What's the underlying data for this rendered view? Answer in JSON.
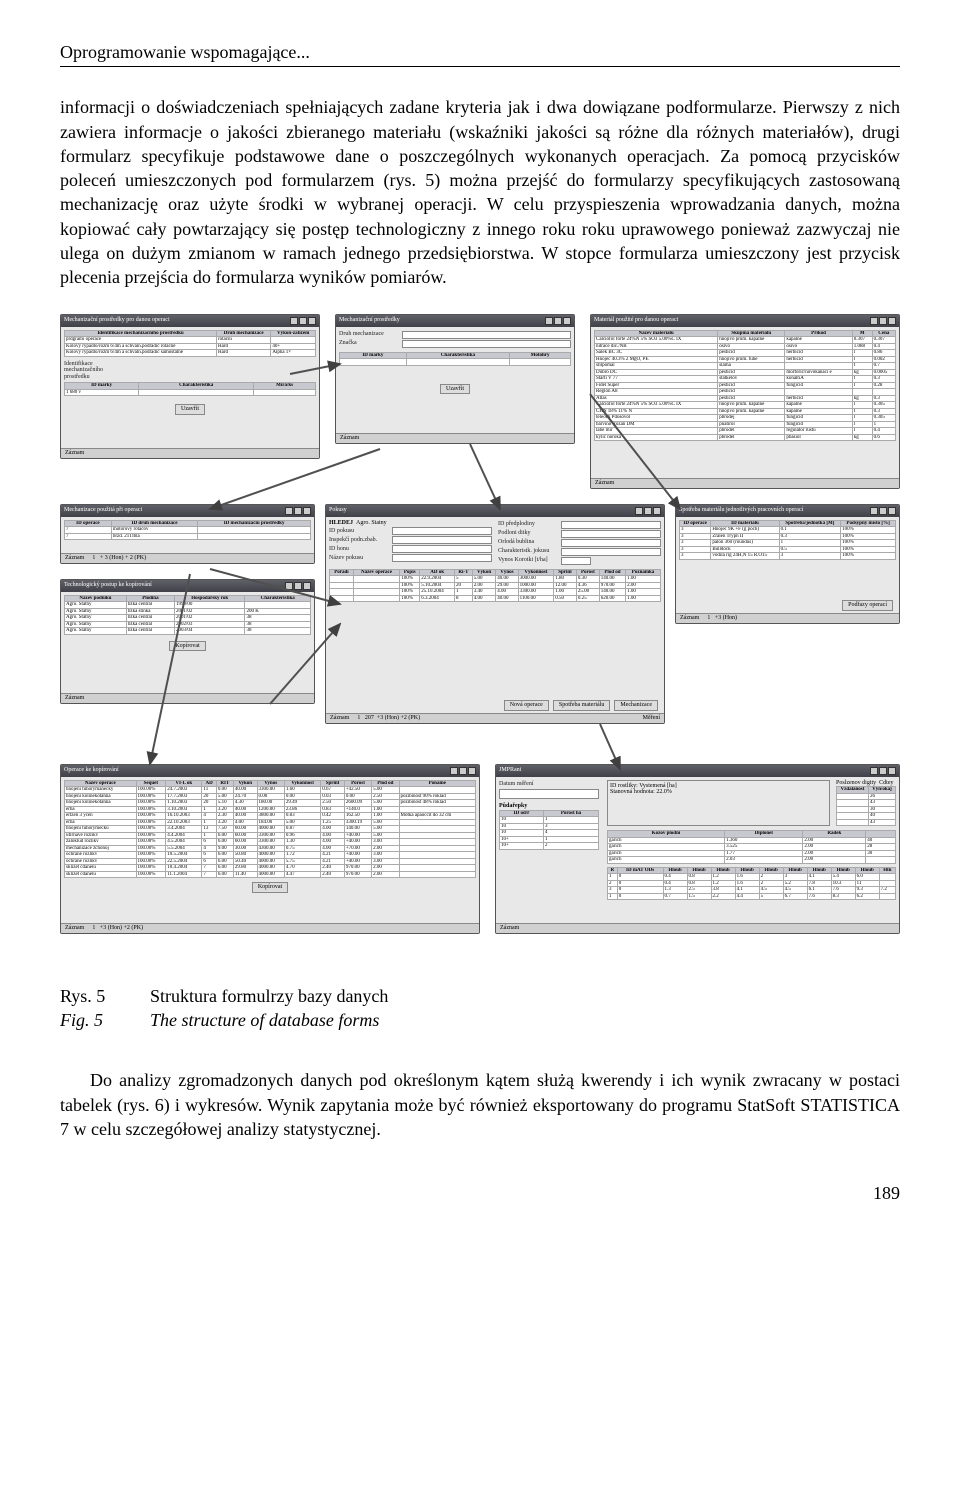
{
  "header": "Oprogramowanie wspomagające...",
  "para1": "informacji o doświadczeniach spełniających zadane kryteria jak i dwa dowiązane podformularze. Pierwszy z nich zawiera informacje o jakości zbieranego materiału (wskaźniki jakości są różne dla różnych materiałów), drugi formularz specyfikuje podstawowe dane o poszczególnych wykonanych operacjach. Za pomocą przycisków poleceń umieszczonych pod formularzem (rys. 5) można przejść do formularzy specyfikujących zastosowaną mechanizację oraz użyte środki w wybranej operacji. W celu przyspieszenia wprowadzania danych, można kopiować cały powtarzający się postęp technologiczny z innego roku roku uprawowego ponieważ zazwyczaj nie ulega on dużym zmianom w ramach jednego przedsiębiorstwa. W stopce formularza umieszczony jest przycisk plecenia przejścia do formularza wyników pomiarów.",
  "caption": {
    "rys_label": "Rys. 5",
    "rys_text": "Struktura  formulrzy bazy danych",
    "fig_label": "Fig. 5",
    "fig_text": "The structure of database forms"
  },
  "para2": "Do analizy zgromadzonych danych pod określonym kątem służą kwerendy i ich wynik zwracany w postaci tabelek (rys. 6) i wykresów. Wynik zapytania może być również eksportowany do  programu StatSoft STATISTICA 7 w celu szczegółowej analizy statystycznej.",
  "page_number": "189",
  "windows": {
    "win1": {
      "title": "Mechanizační prostředky pro danou operaci"
    },
    "win2": {
      "title": "Mechanizační prostředky"
    },
    "win3": {
      "title": "Materiál použité pro danou operaci"
    },
    "win4": {
      "title": "Mechanizace použitá při operaci"
    },
    "win5": {
      "title": "Pokusy"
    },
    "win6": {
      "title": "Spotřeba materiálu jednotlivých pracovních operací"
    },
    "win7": {
      "title": "Technologický postup ke kopírování"
    },
    "win8": {
      "title": "Operace ke kopírování"
    },
    "win9": {
      "title": "JMPRani"
    }
  },
  "labels": {
    "status": "Záznam",
    "button_ok": "Uzavřít",
    "button_copy": "Kopírovat",
    "id_marky": "ID marky",
    "charakteristika": "Charakteristika",
    "mechanizace": "Druh mechanizace",
    "znacka": "Značka",
    "identifikace": "Identifikace mechanizačního prostředku",
    "nazev": "Název materiálu",
    "skupina": "Skupina materiálu",
    "id_pokusu": "ID pokusu",
    "id_predplodiny": "ID předplodiny",
    "prispevek": "Příspěvek pokusu",
    "id_honu": "ID honu",
    "nazev_pokusu": "Název pokusu",
    "agro": "Agro. Statny",
    "rok": "Rok"
  },
  "table_headers": {
    "small": [
      "Pořadí",
      "Název operace",
      "Popis",
      "AD ok",
      "Ří-T",
      "Výkon",
      "Výnos",
      "Výkonnost",
      "Sprint",
      "Porost",
      "Plod od",
      "Poznámka"
    ],
    "mat": [
      "Příkod",
      "M",
      "Cena",
      "Skupina"
    ]
  },
  "sample_rows": [
    [
      "100%",
      "22.9.2004",
      "5",
      "5.00",
      "40.00",
      "3000.00",
      "1.80",
      "0.30",
      "140.00",
      "1.00"
    ],
    [
      "100%",
      "5.10.2004",
      "20",
      "2.00",
      "29.00",
      "1000.00",
      "12.00",
      "4.36",
      "970.00",
      "2.00"
    ],
    [
      "100%",
      "25.10.2004",
      "1",
      "3.40",
      "4.00",
      "3300.00",
      "1.00",
      "25.00",
      "140.00",
      "1.00"
    ],
    [
      "100%",
      "6.3.2004",
      "8",
      "4.00",
      "40.00",
      "1100.00",
      "0.50",
      "0.25",
      "620.00",
      "1.00"
    ]
  ]
}
